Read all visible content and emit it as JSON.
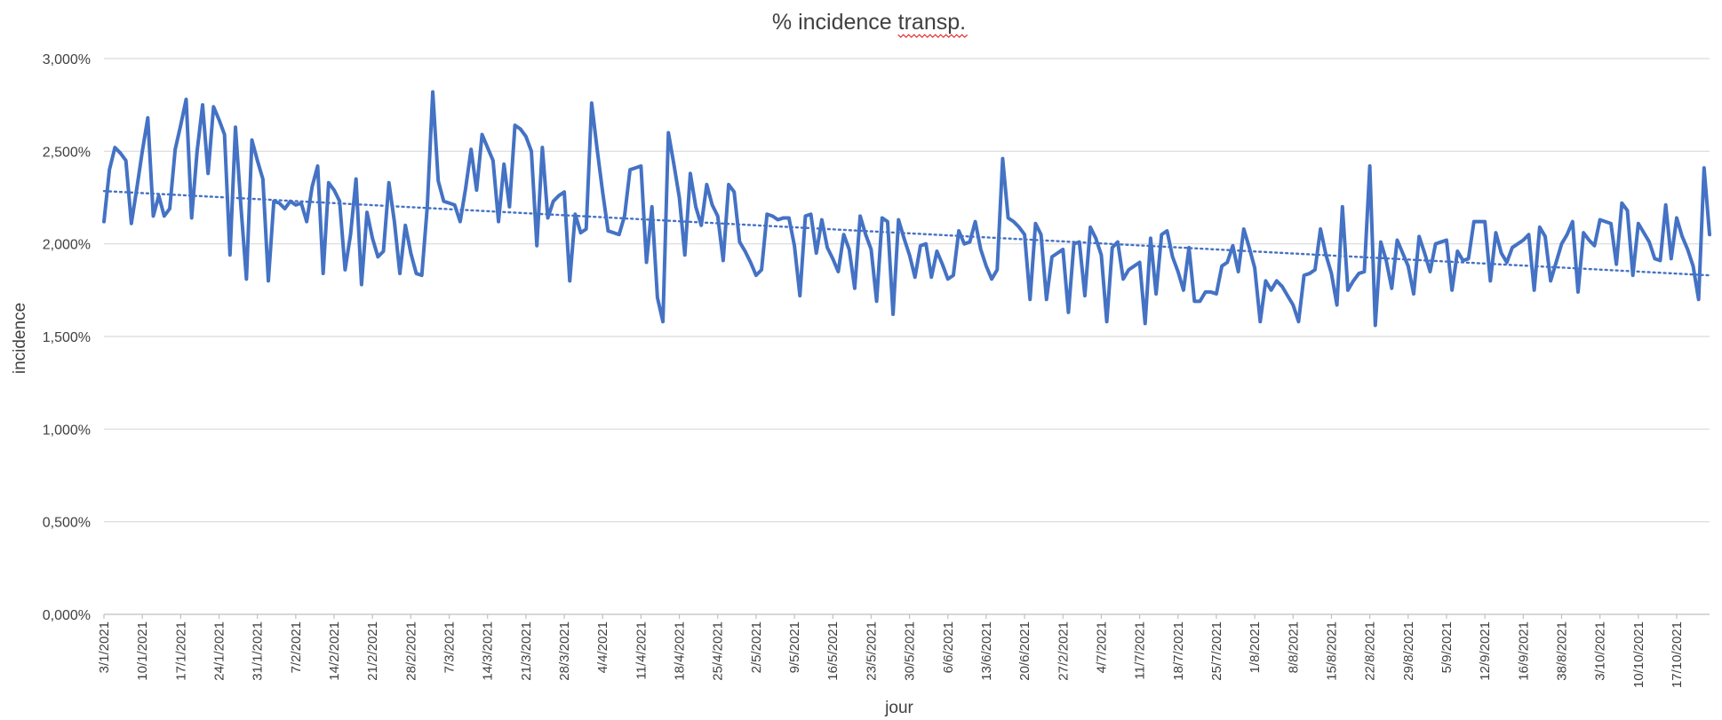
{
  "chart_data": {
    "type": "line",
    "title_prefix": "% incidence ",
    "title_suffix": "transp.",
    "xlabel": "jour",
    "ylabel": "incidence",
    "ylim": [
      0,
      3
    ],
    "y_ticks": [
      0,
      0.5,
      1,
      1.5,
      2,
      2.5,
      3
    ],
    "y_tick_labels": [
      "0,000%",
      "0,500%",
      "1,000%",
      "1,500%",
      "2,000%",
      "2,500%",
      "3,000%"
    ],
    "grid": true,
    "legend": "none",
    "series_color": "#4472c4",
    "trend_color": "#4472c4",
    "x_tick_labels": [
      "3/1/2021",
      "10/1/2021",
      "17/1/2021",
      "24/1/2021",
      "31/1/2021",
      "7/2/2021",
      "14/2/2021",
      "21/2/2021",
      "28/2/2021",
      "7/3/2021",
      "14/3/2021",
      "21/3/2021",
      "28/3/2021",
      "4/4/2021",
      "11/4/2021",
      "18/4/2021",
      "25/4/2021",
      "2/5/2021",
      "9/5/2021",
      "16/5/2021",
      "23/5/2021",
      "30/5/2021",
      "6/6/2021",
      "13/6/2021",
      "20/6/2021",
      "27/2/2021",
      "4/7/2021",
      "11/7/2021",
      "18/7/2021",
      "25/7/2021",
      "1/8/2021",
      "8/8/2021",
      "15/8/2021",
      "22/8/2021",
      "29/8/2021",
      "5/9/2021",
      "12/9/2021",
      "16/9/2021",
      "38/8/2021",
      "3/10/2021",
      "10/10/2021",
      "17/10/2021"
    ],
    "series": [
      {
        "values": [
          2.12,
          2.4,
          2.52,
          2.49,
          2.45,
          2.11,
          2.3,
          2.5,
          2.68,
          2.15,
          2.26,
          2.15,
          2.19,
          2.51,
          2.64,
          2.78,
          2.14,
          2.5,
          2.75,
          2.38,
          2.74,
          2.67,
          2.59,
          1.94,
          2.63,
          2.2,
          1.81,
          2.56,
          2.45,
          2.35,
          1.8,
          2.23,
          2.22,
          2.19,
          2.23,
          2.21,
          2.22,
          2.12,
          2.31,
          2.42,
          1.84,
          2.33,
          2.29,
          2.23,
          1.86,
          2.05,
          2.35,
          1.78,
          2.17,
          2.03,
          1.93,
          1.96,
          2.33,
          2.12,
          1.84,
          2.1,
          1.95,
          1.84,
          1.83,
          2.2,
          2.82,
          2.34,
          2.23,
          2.22,
          2.21,
          2.12,
          2.3,
          2.51,
          2.29,
          2.59,
          2.52,
          2.45,
          2.12,
          2.43,
          2.2,
          2.64,
          2.62,
          2.58,
          2.5,
          1.99,
          2.52,
          2.14,
          2.23,
          2.26,
          2.28,
          1.8,
          2.16,
          2.06,
          2.08,
          2.76,
          2.51,
          2.28,
          2.07,
          2.06,
          2.05,
          2.15,
          2.4,
          2.41,
          2.42,
          1.9,
          2.2,
          1.71,
          1.58,
          2.6,
          2.43,
          2.25,
          1.94,
          2.38,
          2.2,
          2.1,
          2.32,
          2.21,
          2.15,
          1.91,
          2.32,
          2.28,
          2.01,
          1.96,
          1.9,
          1.83,
          1.86,
          2.16,
          2.15,
          2.13,
          2.14,
          2.14,
          1.99,
          1.72,
          2.15,
          2.16,
          1.95,
          2.13,
          1.98,
          1.92,
          1.85,
          2.05,
          1.97,
          1.76,
          2.15,
          2.05,
          1.97,
          1.69,
          2.14,
          2.12,
          1.62,
          2.13,
          2.03,
          1.94,
          1.82,
          1.99,
          2.0,
          1.82,
          1.96,
          1.89,
          1.81,
          1.83,
          2.07,
          2.0,
          2.01,
          2.12,
          1.97,
          1.88,
          1.81,
          1.86,
          2.46,
          2.14,
          2.12,
          2.09,
          2.05,
          1.7,
          2.11,
          2.05,
          1.7,
          1.93,
          1.95,
          1.97,
          1.63,
          2.0,
          2.01,
          1.72,
          2.09,
          2.03,
          1.94,
          1.58,
          1.98,
          2.01,
          1.81,
          1.86,
          1.88,
          1.9,
          1.57,
          2.03,
          1.73,
          2.05,
          2.07,
          1.93,
          1.85,
          1.75,
          1.98,
          1.69,
          1.69,
          1.74,
          1.74,
          1.73,
          1.88,
          1.9,
          1.99,
          1.85,
          2.08,
          1.98,
          1.87,
          1.58,
          1.8,
          1.75,
          1.8,
          1.77,
          1.72,
          1.67,
          1.58,
          1.83,
          1.84,
          1.86,
          2.08,
          1.94,
          1.84,
          1.67,
          2.2,
          1.75,
          1.8,
          1.84,
          1.85,
          2.42,
          1.56,
          2.01,
          1.91,
          1.76,
          2.02,
          1.95,
          1.88,
          1.73,
          2.04,
          1.95,
          1.85,
          2.0,
          2.01,
          2.02,
          1.75,
          1.96,
          1.91,
          1.92,
          2.12,
          2.12,
          2.12,
          1.8,
          2.06,
          1.95,
          1.9,
          1.98,
          2.0,
          2.02,
          2.05,
          1.75,
          2.09,
          2.04,
          1.8,
          1.9,
          2.0,
          2.05,
          2.12,
          1.74,
          2.06,
          2.02,
          1.99,
          2.13,
          2.12,
          2.11,
          1.89,
          2.22,
          2.18,
          1.83,
          2.11,
          2.06,
          2.01,
          1.92,
          1.91,
          2.21,
          1.92,
          2.14,
          2.04,
          1.97,
          1.88,
          1.7,
          2.41,
          2.05
        ]
      }
    ],
    "trend": {
      "type": "linear",
      "start": 2.285,
      "end": 1.83
    }
  }
}
